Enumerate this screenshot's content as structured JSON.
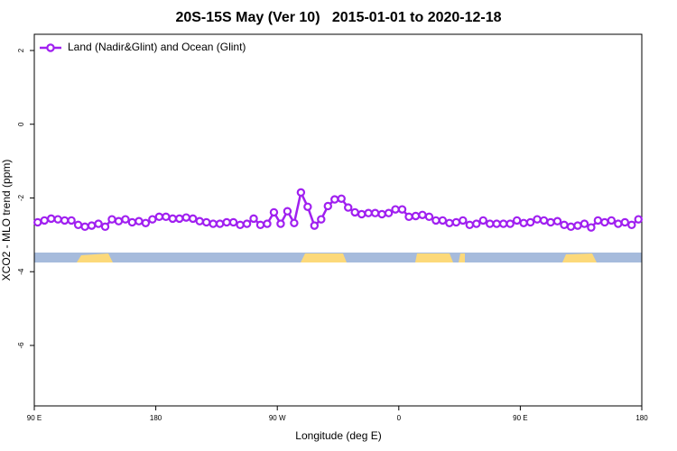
{
  "chart_data": {
    "type": "line",
    "title": "20S-15S May (Ver 10)   2015-01-01 to 2020-12-18",
    "x_label": "Longitude (deg E)",
    "y_label": "XCO2 - MLO trend (ppm)",
    "xlim": [
      90,
      540
    ],
    "ylim": [
      -7.64,
      2.44
    ],
    "xticks": [
      {
        "value": 90,
        "label": "90 E"
      },
      180,
      {
        "value": 270,
        "label": "90 W"
      },
      {
        "value": 360,
        "label": "0"
      },
      {
        "value": 450,
        "label": "90 E"
      },
      {
        "value": 540,
        "label": "180"
      }
    ],
    "yticks": [
      2,
      0,
      -2,
      -4,
      -6
    ],
    "legend": "top-left",
    "x": [
      92.5,
      97.5,
      102.5,
      107.5,
      112.5,
      117.5,
      122.5,
      127.5,
      132.5,
      137.5,
      142.5,
      147.5,
      152.5,
      157.5,
      162.5,
      167.5,
      172.5,
      177.5,
      182.5,
      187.5,
      192.5,
      197.5,
      202.5,
      207.5,
      212.5,
      217.5,
      222.5,
      227.5,
      232.5,
      237.5,
      242.5,
      247.5,
      252.5,
      257.5,
      262.5,
      267.5,
      272.5,
      277.5,
      282.5,
      287.5,
      292.5,
      297.5,
      302.5,
      307.5,
      312.5,
      317.5,
      322.5,
      327.5,
      332.5,
      337.5,
      342.5,
      347.5,
      352.5,
      357.5,
      362.5,
      367.5,
      372.5,
      377.5,
      382.5,
      387.5,
      392.5,
      397.5,
      402.5,
      407.5,
      412.5,
      417.5,
      422.5,
      427.5,
      432.5,
      437.5,
      442.5,
      447.5,
      452.5,
      457.5,
      462.5,
      467.5,
      472.5,
      477.5,
      482.5,
      487.5,
      492.5,
      497.5,
      502.5,
      507.5,
      512.5,
      517.5,
      522.5,
      527.5,
      532.5,
      537.5
    ],
    "series": [
      {
        "name": "Land (Nadir&Glint) and Ocean (Glint)",
        "color": "#a020f0",
        "values": [
          -2.66,
          -2.61,
          -2.56,
          -2.58,
          -2.61,
          -2.61,
          -2.73,
          -2.78,
          -2.75,
          -2.7,
          -2.78,
          -2.58,
          -2.63,
          -2.58,
          -2.66,
          -2.63,
          -2.68,
          -2.58,
          -2.51,
          -2.51,
          -2.56,
          -2.56,
          -2.53,
          -2.56,
          -2.63,
          -2.66,
          -2.7,
          -2.7,
          -2.66,
          -2.66,
          -2.73,
          -2.7,
          -2.56,
          -2.73,
          -2.7,
          -2.39,
          -2.7,
          -2.36,
          -2.68,
          -1.85,
          -2.24,
          -2.75,
          -2.58,
          -2.22,
          -2.04,
          -2.02,
          -2.26,
          -2.39,
          -2.44,
          -2.41,
          -2.41,
          -2.44,
          -2.41,
          -2.31,
          -2.31,
          -2.51,
          -2.49,
          -2.46,
          -2.51,
          -2.61,
          -2.61,
          -2.68,
          -2.66,
          -2.61,
          -2.73,
          -2.7,
          -2.61,
          -2.7,
          -2.7,
          -2.7,
          -2.7,
          -2.61,
          -2.68,
          -2.66,
          -2.58,
          -2.61,
          -2.66,
          -2.63,
          -2.73,
          -2.78,
          -2.75,
          -2.7,
          -2.8,
          -2.61,
          -2.66,
          -2.61,
          -2.7,
          -2.66,
          -2.73,
          -2.58
        ]
      }
    ]
  }
}
